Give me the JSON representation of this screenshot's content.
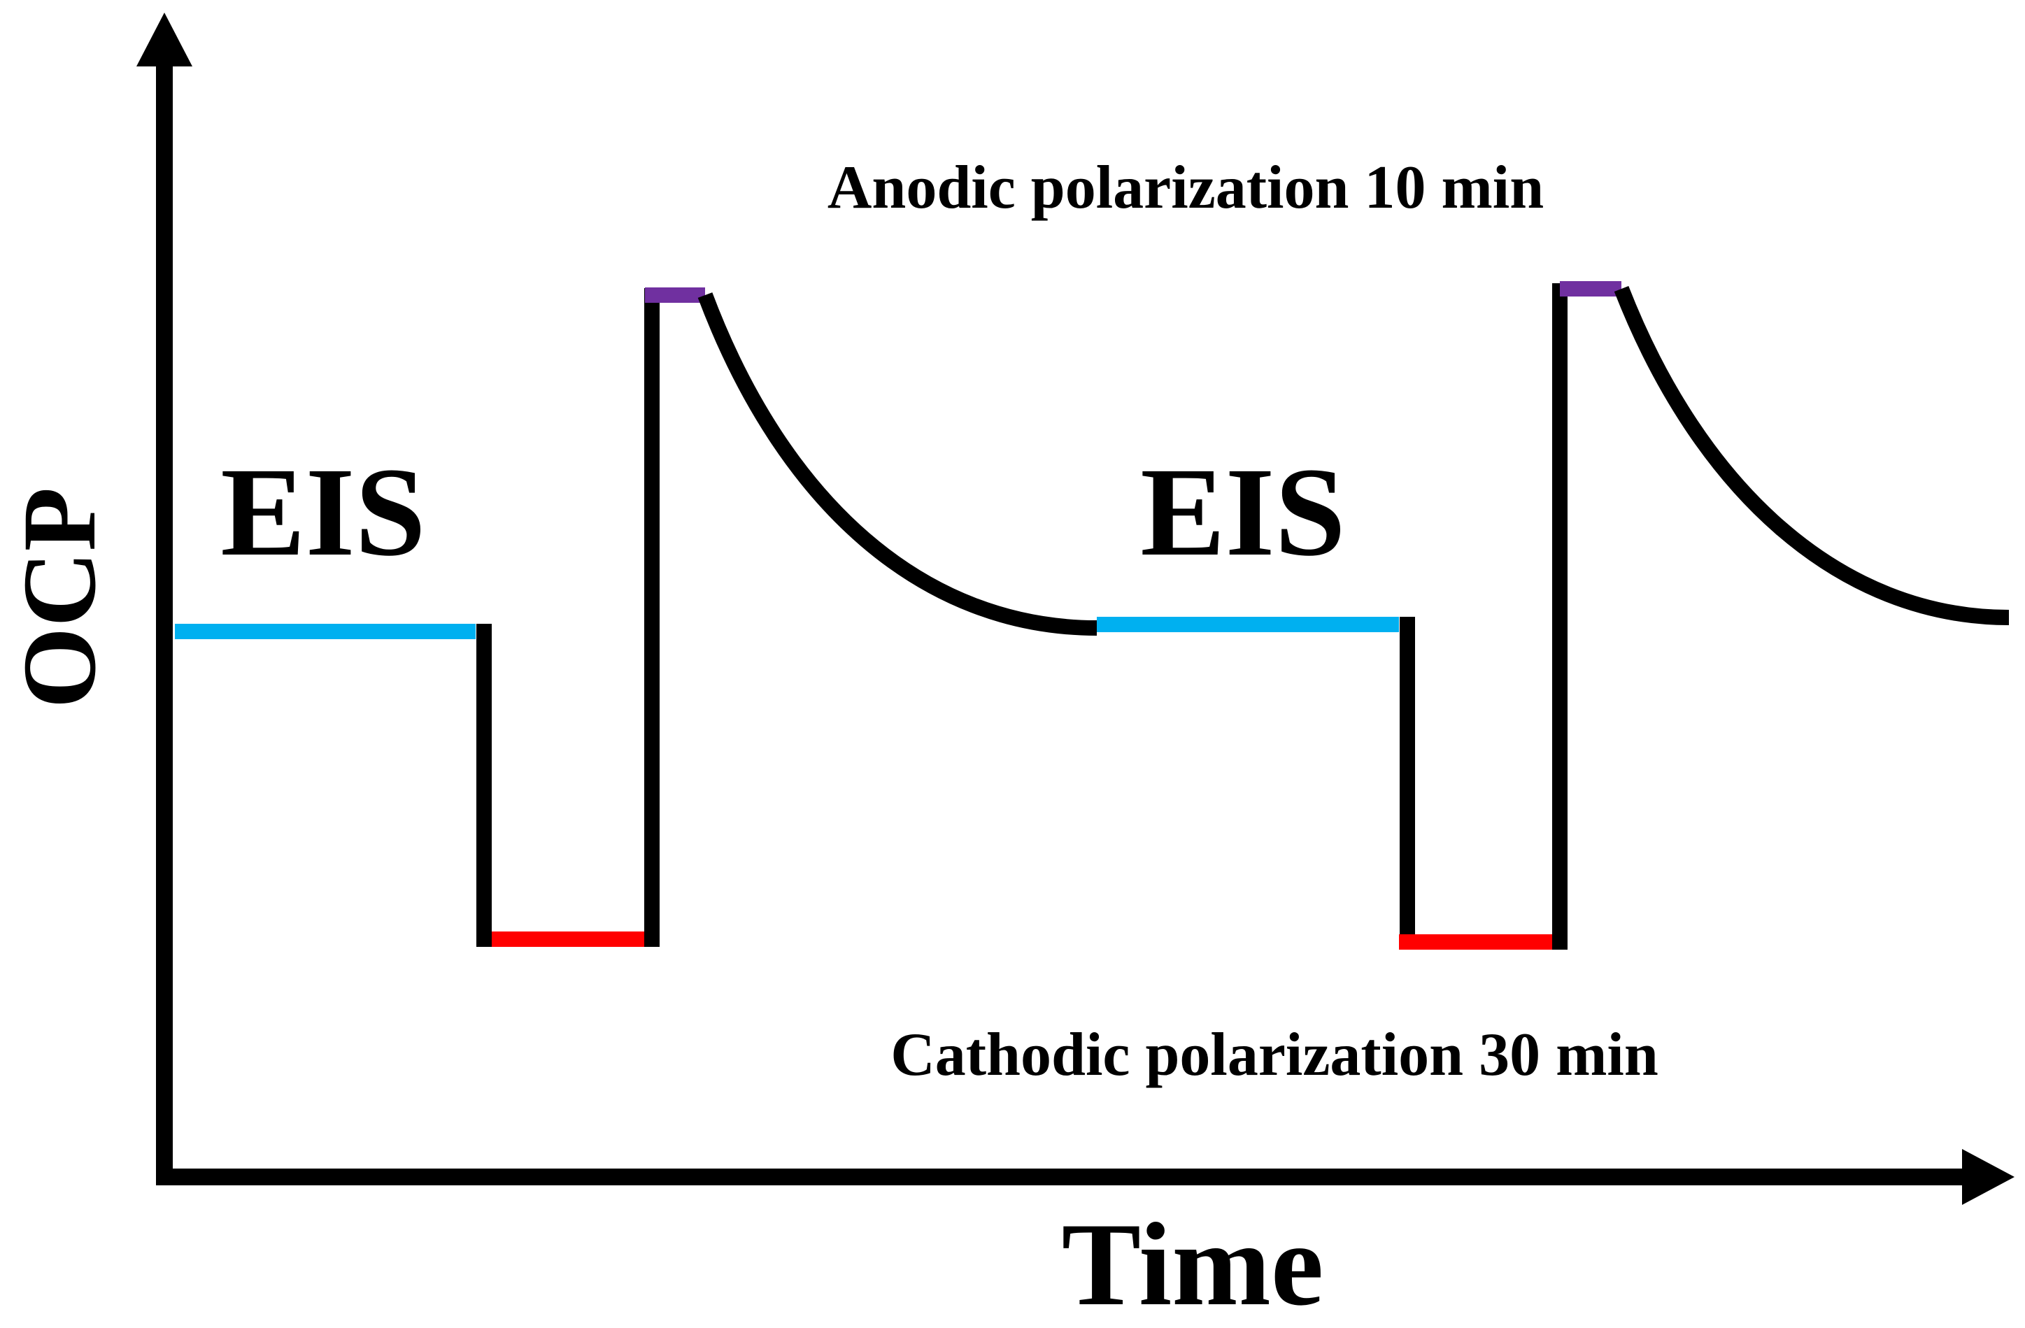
{
  "axes": {
    "y_label": "OCP",
    "x_label": "Time"
  },
  "annotations": {
    "eis_1": "EIS",
    "eis_2": "EIS",
    "anodic": "Anodic polarization 10 min",
    "cathodic": "Cathodic polarization 30 min"
  },
  "colors": {
    "axis": "#000000",
    "ocp_trace": "#000000",
    "eis_segment": "#00b0f0",
    "cathodic_segment": "#ff0000",
    "anodic_segment": "#7030a0"
  }
}
